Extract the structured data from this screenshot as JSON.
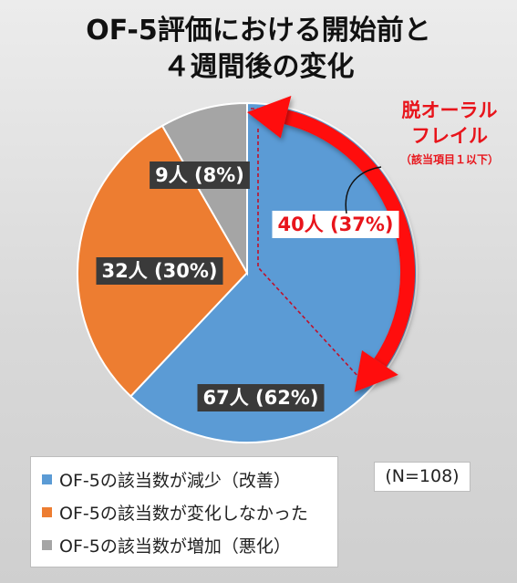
{
  "title": {
    "line1": "OF-5評価における開始前と",
    "line2": "４週間後の変化"
  },
  "chart_data": {
    "type": "pie",
    "title": "OF-5評価における開始前と４週間後の変化",
    "total_label": "(N=108)",
    "slices": [
      {
        "name": "OF-5の該当数が減少（改善）",
        "count": 67,
        "percent": 62,
        "label": "67人 (62%)",
        "color": "#5b9bd5"
      },
      {
        "name": "OF-5の該当数が変化しなかった",
        "count": 32,
        "percent": 30,
        "label": "32人 (30%)",
        "color": "#ed7d31"
      },
      {
        "name": "OF-5の該当数が増加（悪化）",
        "count": 9,
        "percent": 8,
        "label": "9人 (8%)",
        "color": "#a5a5a5"
      }
    ],
    "sub_slice": {
      "label": "40人 (37%)",
      "count": 40,
      "percent": 37
    },
    "legend_position": "bottom-left"
  },
  "annotation": {
    "main": [
      "脱オーラル",
      "フレイル"
    ],
    "sub": "（該当項目１以下）",
    "color": "#e8141b"
  }
}
